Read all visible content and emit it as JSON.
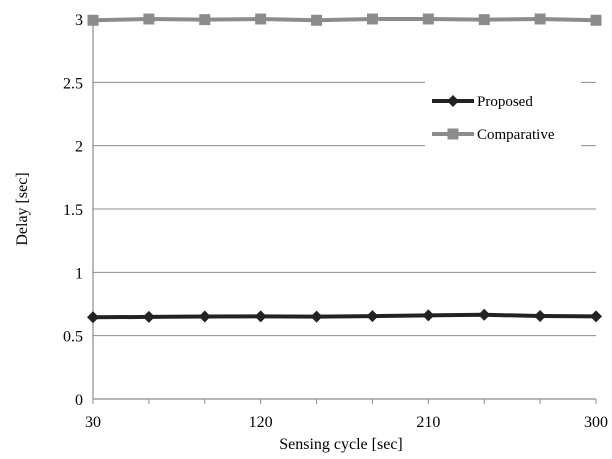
{
  "chart_data": {
    "type": "line",
    "title": "",
    "xlabel": "Sensing cycle [sec]",
    "ylabel": "Delay [sec]",
    "x": [
      30,
      60,
      90,
      120,
      150,
      180,
      210,
      240,
      270,
      300
    ],
    "x_tick_labels": [
      "30",
      "120",
      "210",
      "300"
    ],
    "y_tick_labels": [
      "0",
      "0.5",
      "1",
      "1.5",
      "2",
      "2.5",
      "3"
    ],
    "ylim": [
      0,
      3
    ],
    "xlim": [
      30,
      300
    ],
    "grid": "horizontal",
    "legend_position": "right",
    "series": [
      {
        "name": "Proposed",
        "color": "#222222",
        "marker": "diamond",
        "values": [
          0.645,
          0.648,
          0.651,
          0.652,
          0.65,
          0.654,
          0.66,
          0.665,
          0.655,
          0.652
        ]
      },
      {
        "name": "Comparative",
        "color": "#8c8c8c",
        "marker": "square",
        "values": [
          2.99,
          3.0,
          2.995,
          3.0,
          2.99,
          3.0,
          3.0,
          2.995,
          3.0,
          2.99
        ]
      }
    ]
  }
}
